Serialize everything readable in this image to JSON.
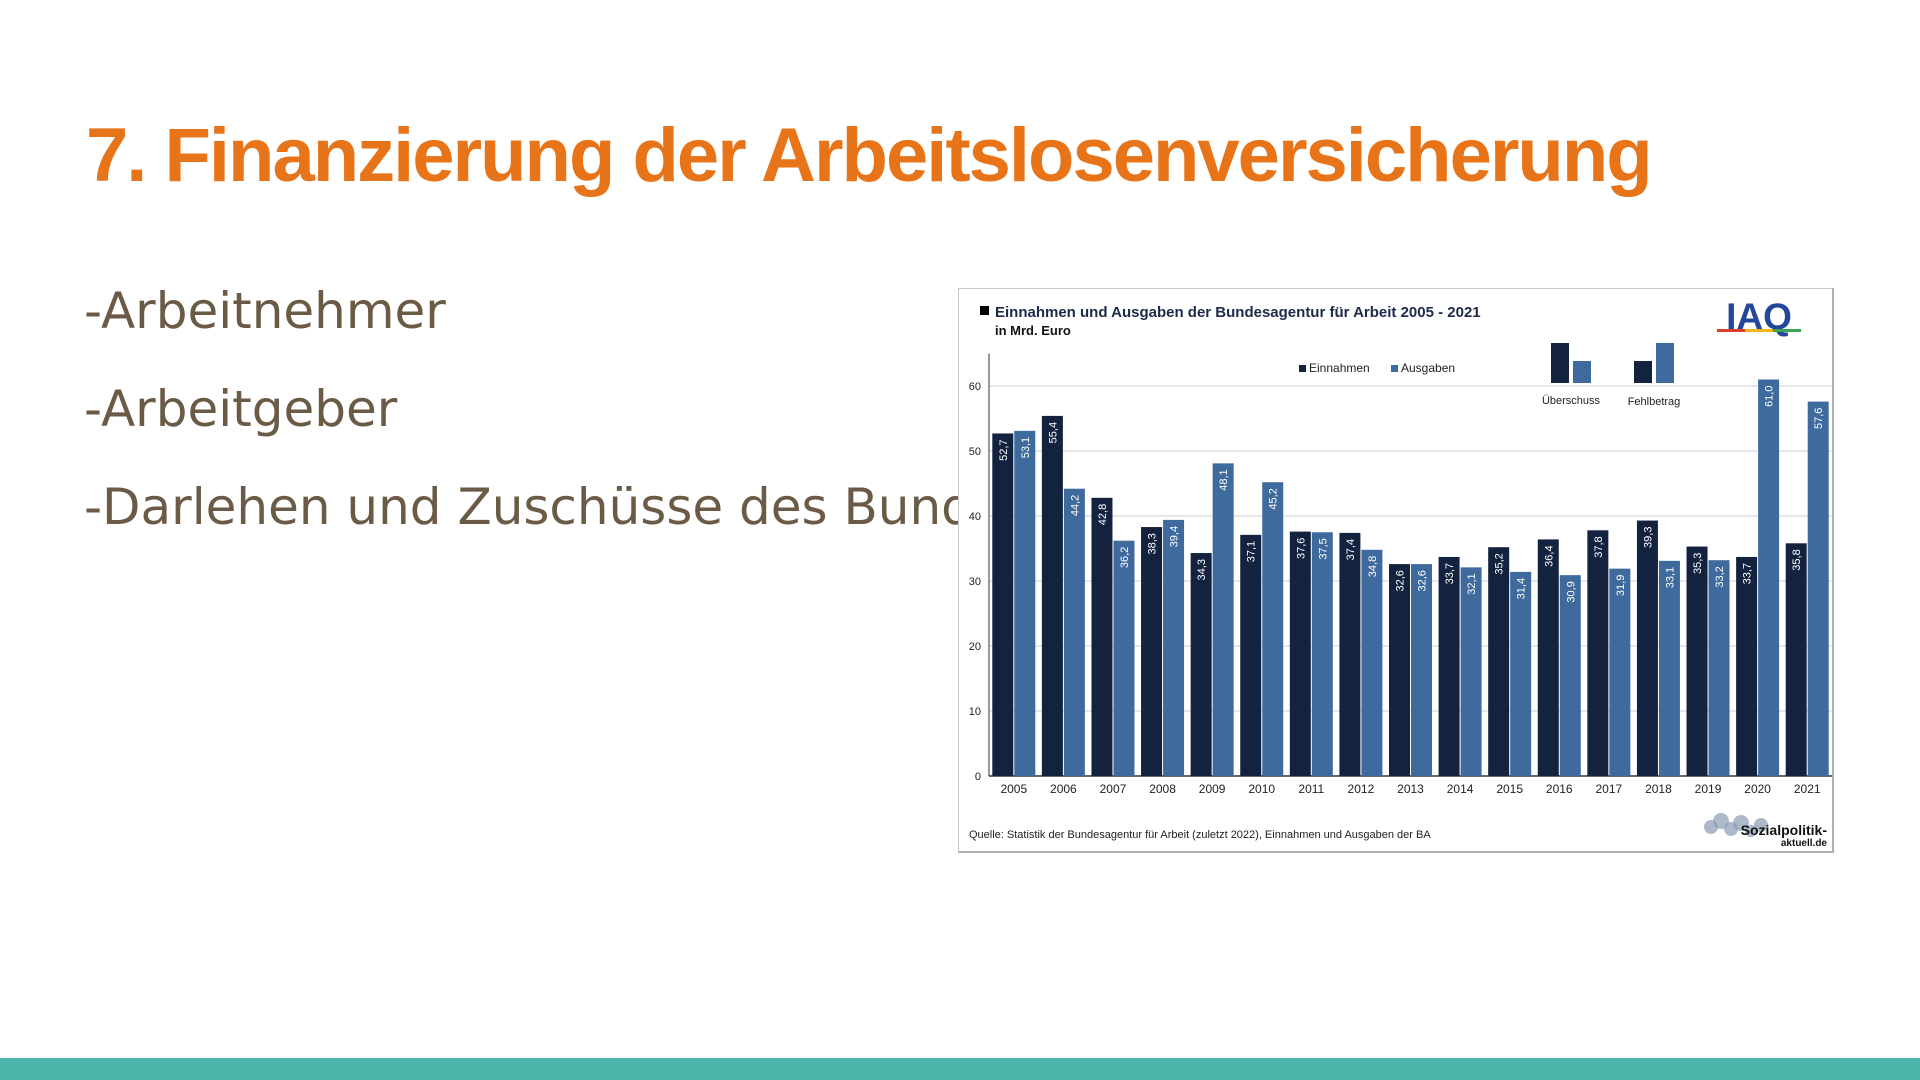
{
  "slide": {
    "title": "7. Finanzierung der Arbeitslosenversicherung",
    "bullets": [
      "-Arbeitnehmer",
      "-Arbeitgeber",
      "-Darlehen und Zuschüsse des Bundes"
    ]
  },
  "chart_data": {
    "type": "bar",
    "title": "Einnahmen und Ausgaben der Bundesagentur für Arbeit 2005 - 2021",
    "subtitle": "in Mrd. Euro",
    "brand": "IAQ",
    "categories": [
      "2005",
      "2006",
      "2007",
      "2008",
      "2009",
      "2010",
      "2011",
      "2012",
      "2013",
      "2014",
      "2015",
      "2016",
      "2017",
      "2018",
      "2019",
      "2020",
      "2021"
    ],
    "series": [
      {
        "name": "Einnahmen",
        "color": "#13233f",
        "values": [
          52.7,
          55.4,
          42.8,
          38.3,
          34.3,
          37.1,
          37.6,
          37.4,
          32.6,
          33.7,
          35.2,
          36.4,
          37.8,
          39.3,
          35.3,
          33.7,
          35.8
        ],
        "labels": [
          "52,7",
          "55,4",
          "42,8",
          "38,3",
          "34,3",
          "37,1",
          "37,6",
          "37,4",
          "32,6",
          "33,7",
          "35,2",
          "36,4",
          "37,8",
          "39,3",
          "35,3",
          "33,7",
          "35,8"
        ]
      },
      {
        "name": "Ausgaben",
        "color": "#3f6a9e",
        "values": [
          53.1,
          44.2,
          36.2,
          39.4,
          48.1,
          45.2,
          37.5,
          34.8,
          32.6,
          32.1,
          31.4,
          30.9,
          31.9,
          33.1,
          33.2,
          61.0,
          57.6
        ],
        "labels": [
          "53,1",
          "44,2",
          "36,2",
          "39,4",
          "48,1",
          "45,2",
          "37,5",
          "34,8",
          "32,6",
          "32,1",
          "31,4",
          "30,9",
          "31,9",
          "33,1",
          "33,2",
          "61,0",
          "57,6"
        ]
      }
    ],
    "yticks": [
      0,
      10,
      20,
      30,
      40,
      50,
      60
    ],
    "ylim": [
      0,
      65
    ],
    "legend_position": "top-center",
    "key_labels": [
      "Überschuss",
      "Fehlbetrag"
    ],
    "source": "Quelle: Statistik der Bundesagentur für Arbeit (zuletzt 2022), Einnahmen und Ausgaben der BA",
    "logo": {
      "line1": "Sozialpolitik-",
      "line2": "aktuell.de"
    }
  }
}
